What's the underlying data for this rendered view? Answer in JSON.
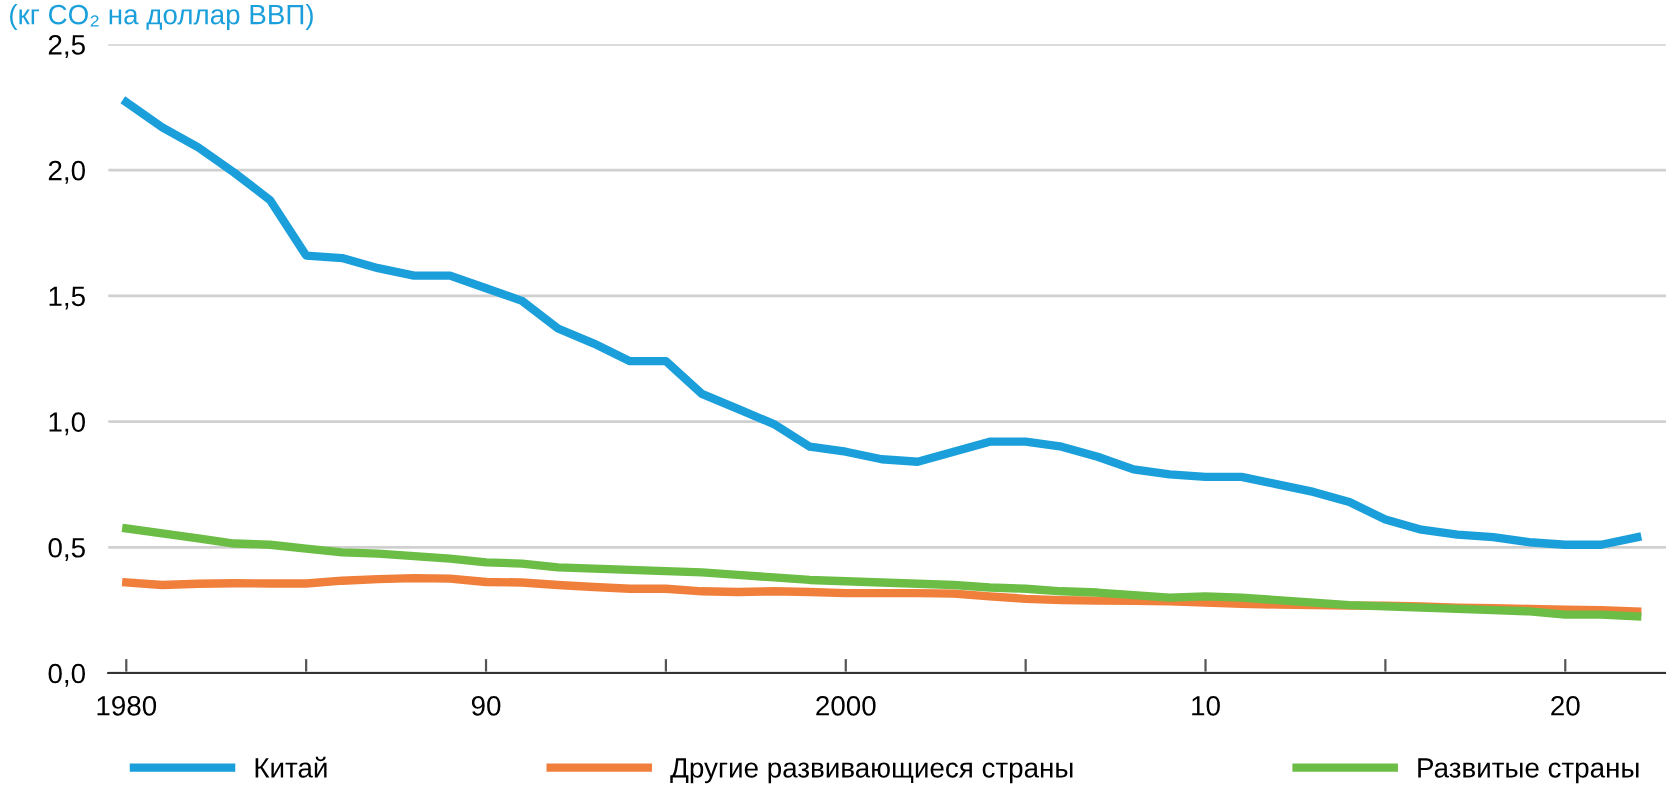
{
  "chart_data": {
    "type": "line",
    "subtitle": "(кг CO₂ на доллар ВВП)",
    "x": [
      1980,
      1981,
      1982,
      1983,
      1984,
      1985,
      1986,
      1987,
      1988,
      1989,
      1990,
      1991,
      1992,
      1993,
      1994,
      1995,
      1996,
      1997,
      1998,
      1999,
      2000,
      2001,
      2002,
      2003,
      2004,
      2005,
      2006,
      2007,
      2008,
      2009,
      2010,
      2011,
      2012,
      2013,
      2014,
      2015,
      2016,
      2017,
      2018,
      2019,
      2020,
      2021,
      2022
    ],
    "series": [
      {
        "name": "Китай",
        "color": "#1a9fdb",
        "values": [
          2.27,
          2.17,
          2.09,
          1.99,
          1.88,
          1.66,
          1.65,
          1.61,
          1.58,
          1.58,
          1.53,
          1.48,
          1.37,
          1.31,
          1.24,
          1.24,
          1.11,
          1.05,
          0.99,
          0.9,
          0.88,
          0.85,
          0.84,
          0.88,
          0.92,
          0.92,
          0.9,
          0.86,
          0.81,
          0.79,
          0.78,
          0.78,
          0.75,
          0.72,
          0.68,
          0.61,
          0.57,
          0.55,
          0.54,
          0.52,
          0.51,
          0.51,
          0.54
        ]
      },
      {
        "name": "Другие развивающиеся страны",
        "color": "#f07f3c",
        "values": [
          0.36,
          0.35,
          0.355,
          0.357,
          0.356,
          0.356,
          0.367,
          0.373,
          0.377,
          0.375,
          0.362,
          0.36,
          0.35,
          0.342,
          0.335,
          0.335,
          0.325,
          0.322,
          0.325,
          0.322,
          0.318,
          0.318,
          0.318,
          0.316,
          0.305,
          0.295,
          0.29,
          0.288,
          0.287,
          0.285,
          0.28,
          0.275,
          0.272,
          0.27,
          0.268,
          0.268,
          0.265,
          0.26,
          0.258,
          0.255,
          0.252,
          0.25,
          0.245
        ]
      },
      {
        "name": "Развитые страны",
        "color": "#6cbd45",
        "values": [
          0.575,
          0.555,
          0.535,
          0.515,
          0.51,
          0.495,
          0.48,
          0.475,
          0.465,
          0.455,
          0.44,
          0.435,
          0.42,
          0.415,
          0.41,
          0.405,
          0.4,
          0.39,
          0.38,
          0.37,
          0.365,
          0.36,
          0.355,
          0.35,
          0.34,
          0.335,
          0.325,
          0.32,
          0.31,
          0.3,
          0.305,
          0.3,
          0.29,
          0.28,
          0.27,
          0.265,
          0.26,
          0.255,
          0.25,
          0.245,
          0.232,
          0.232,
          0.225
        ]
      }
    ],
    "xlim": [
      1979.5,
      2022.8
    ],
    "xticks": [
      1980,
      {
        "value": 1985,
        "label": null
      },
      {
        "value": 1990,
        "label": "90"
      },
      {
        "value": 1995,
        "label": null
      },
      2000,
      {
        "value": 2005,
        "label": null
      },
      {
        "value": 2010,
        "label": "10"
      },
      {
        "value": 2015,
        "label": null
      },
      {
        "value": 2020,
        "label": "20"
      }
    ],
    "ylim": [
      0,
      2.5
    ],
    "yticks": [
      {
        "value": 0,
        "label": "0,0"
      },
      {
        "value": 0.5,
        "label": "0,5"
      },
      {
        "value": 1,
        "label": "1,0"
      },
      {
        "value": 1.5,
        "label": "1,5"
      },
      {
        "value": 2,
        "label": "2,0"
      },
      {
        "value": 2.5,
        "label": "2,5"
      }
    ],
    "grid": "y",
    "legend": "bottom",
    "marker": "none",
    "line_style": "solid"
  }
}
